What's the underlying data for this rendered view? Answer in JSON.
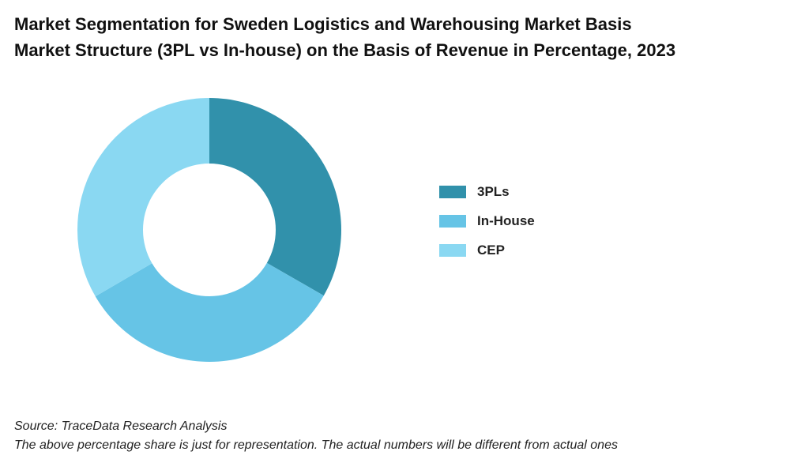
{
  "chart_data": {
    "type": "pie",
    "style": "donut",
    "title_lines": [
      "Market Segmentation for Sweden Logistics and Warehousing Market Basis",
      "Market Structure (3PL vs In-house) on the Basis of Revenue in Percentage, 2023"
    ],
    "categories": [
      "3PLs",
      "In-House",
      "CEP"
    ],
    "values": [
      33.3,
      33.3,
      33.4
    ],
    "colors": [
      "#3191ab",
      "#66c4e6",
      "#8ad8f2"
    ],
    "legend_position": "right"
  },
  "footer": {
    "source": "Source: TraceData Research Analysis",
    "note": "The above percentage share is just for representation. The actual numbers will be different from actual ones"
  }
}
